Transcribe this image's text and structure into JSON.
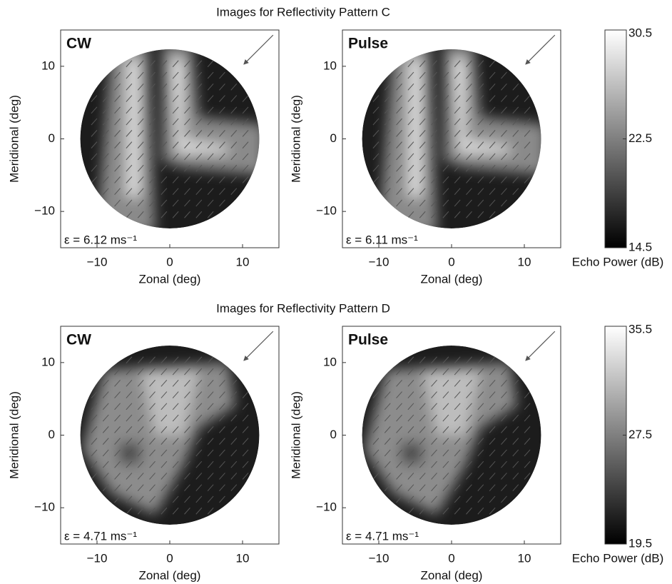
{
  "chart_data": [
    {
      "type": "heatmap",
      "title": "Images for Reflectivity Pattern C",
      "panels": [
        {
          "label": "CW",
          "error": "ε = 6.12 ms⁻¹"
        },
        {
          "label": "Pulse",
          "error": "ε = 6.11 ms⁻¹"
        }
      ],
      "xlabel": "Zonal (deg)",
      "ylabel": "Meridional (deg)",
      "xlim": [
        -15,
        15
      ],
      "ylim": [
        -15,
        15
      ],
      "xticks": [
        {
          "value": -10,
          "label": "−10"
        },
        0,
        10
      ],
      "yticks": [
        {
          "value": -10,
          "label": "−10"
        },
        0,
        10
      ],
      "colorbar": {
        "label": "Echo Power (dB)",
        "lim": [
          14.5,
          30.5
        ],
        "ticks": [
          14.5,
          22.5,
          30.5
        ]
      }
    },
    {
      "type": "heatmap",
      "title": "Images for Reflectivity Pattern D",
      "panels": [
        {
          "label": "CW",
          "error": "ε = 4.71 ms⁻¹"
        },
        {
          "label": "Pulse",
          "error": "ε = 4.71 ms⁻¹"
        }
      ],
      "xlabel": "Zonal (deg)",
      "ylabel": "Meridional (deg)",
      "xlim": [
        -15,
        15
      ],
      "ylim": [
        -15,
        15
      ],
      "xticks": [
        {
          "value": -10,
          "label": "−10"
        },
        0,
        10
      ],
      "yticks": [
        {
          "value": -10,
          "label": "−10"
        },
        0,
        10
      ],
      "colorbar": {
        "label": "Echo Power (dB)",
        "lim": [
          19.5,
          35.5
        ],
        "ticks": [
          19.5,
          27.5,
          35.5
        ]
      }
    }
  ]
}
